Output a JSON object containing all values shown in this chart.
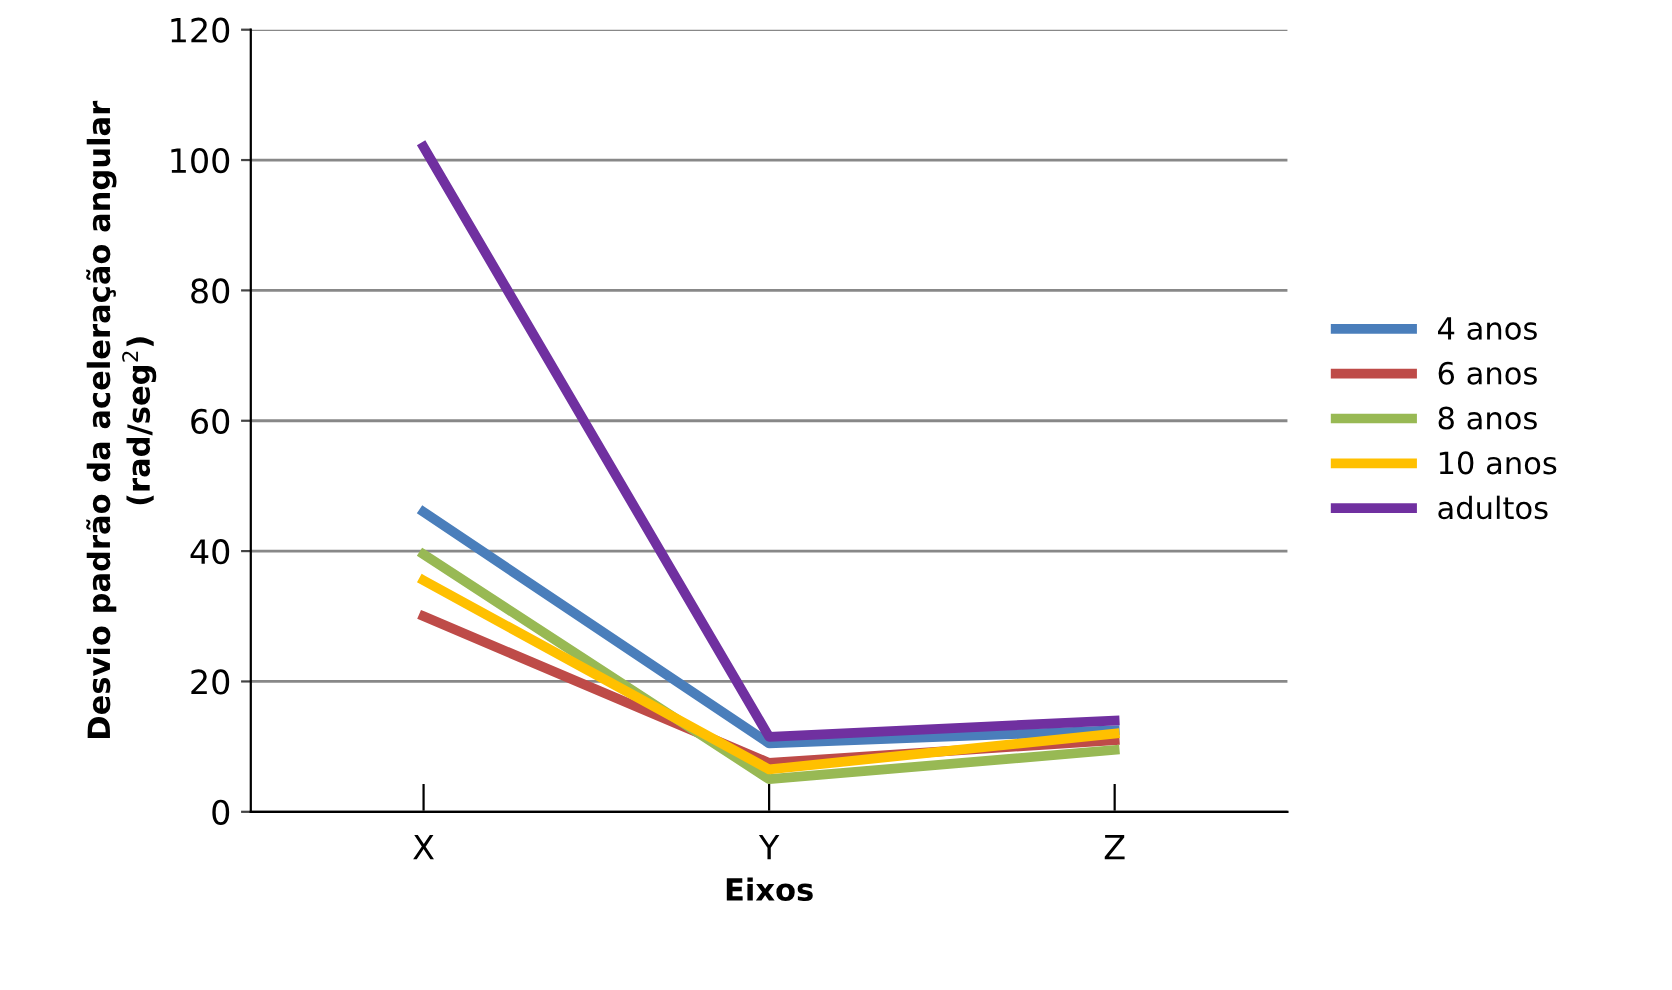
{
  "chart_data": {
    "type": "line",
    "xlabel": "Eixos",
    "ylabel": "Desvio padrão da aceleração angular\n(rad/seg$^{2}$)",
    "categories": [
      "X",
      "Y",
      "Z"
    ],
    "series": [
      {
        "name": "4 anos",
        "color": "#4a7ebb",
        "values": [
          46,
          10.5,
          12.5
        ]
      },
      {
        "name": "6 anos",
        "color": "#be4b48",
        "values": [
          30,
          7.5,
          11
        ]
      },
      {
        "name": "8 anos",
        "color": "#98b954",
        "values": [
          39.5,
          5,
          9.5
        ]
      },
      {
        "name": "10 anos",
        "color": "#ffc000",
        "values": [
          35.5,
          6.5,
          12
        ]
      },
      {
        "name": "adultos",
        "color": "#7030a0",
        "values": [
          102,
          11.5,
          14
        ]
      }
    ],
    "ylim": [
      0,
      120
    ],
    "yticks": [
      0,
      20,
      40,
      60,
      80,
      100,
      120
    ],
    "grid": "y",
    "legend": "right",
    "marker": "none",
    "line_style": "solid"
  }
}
